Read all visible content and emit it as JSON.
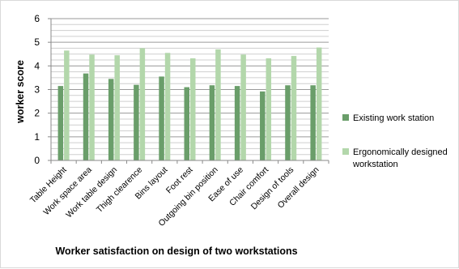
{
  "chart_data": {
    "type": "bar",
    "title": "",
    "xlabel": "Worker satisfaction on design of two workstations",
    "ylabel": "worker score",
    "ylim": [
      0,
      6
    ],
    "yticks": [
      0,
      1,
      2,
      3,
      4,
      5,
      6
    ],
    "grid": true,
    "legend_position": "right",
    "categories": [
      "Table Height",
      "Work space area",
      "Work table design",
      "Thigh clearence",
      "Bins layout",
      "Foot rest",
      "Outgoing bin position",
      "Ease of use",
      "Chair comfort",
      "Design of tools",
      "Overall design"
    ],
    "series": [
      {
        "name": "Existing work station",
        "color": "#6a9e6a",
        "values": [
          3.15,
          3.68,
          3.45,
          3.2,
          3.55,
          3.1,
          3.18,
          3.15,
          2.92,
          3.18,
          3.18
        ]
      },
      {
        "name": "Ergonomically designed workstation",
        "color": "#b3d7ab",
        "values": [
          4.65,
          4.48,
          4.45,
          4.75,
          4.55,
          4.32,
          4.7,
          4.48,
          4.32,
          4.42,
          4.78
        ]
      }
    ]
  }
}
